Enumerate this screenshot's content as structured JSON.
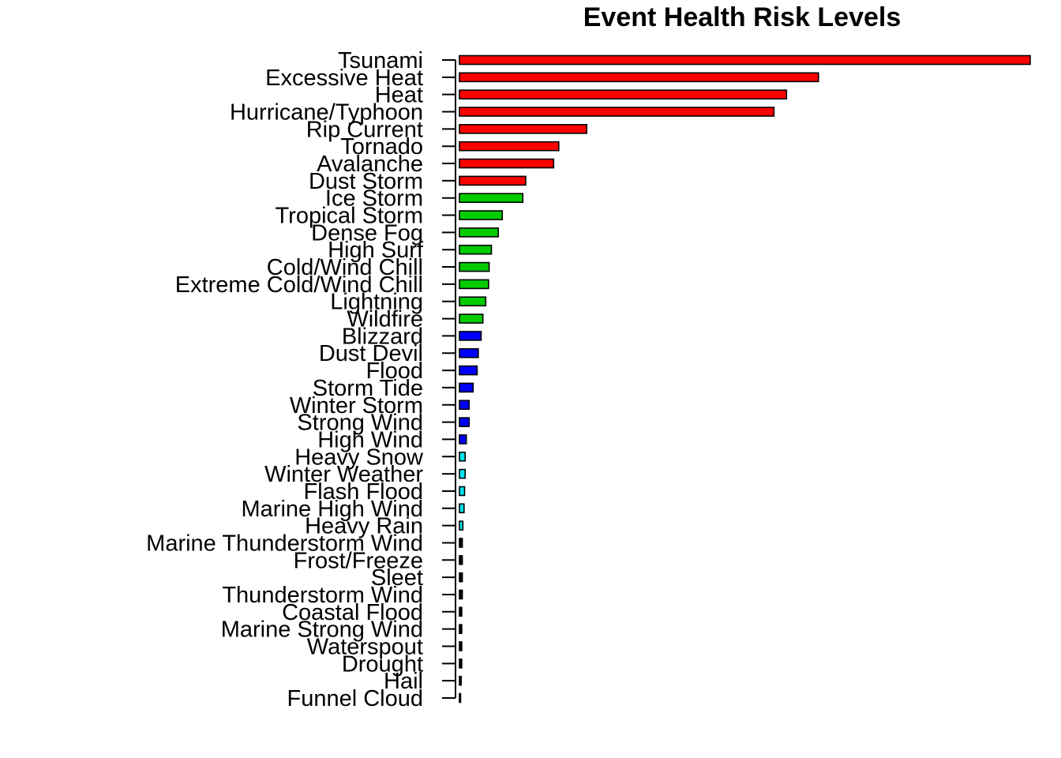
{
  "chart_data": {
    "type": "bar",
    "orientation": "horizontal",
    "title": "Event Health Risk Levels",
    "xlabel": "",
    "ylabel": "",
    "xlim": [
      0,
      100
    ],
    "grid": false,
    "legend": "none",
    "risk_colors": {
      "high": "#ff0000",
      "elevated": "#00cc00",
      "moderate": "#0000ff",
      "low": "#00e5ee",
      "minimal": "#000000"
    },
    "categories": [
      "Tsunami",
      "Excessive Heat",
      "Heat",
      "Hurricane/Typhoon",
      "Rip Current",
      "Tornado",
      "Avalanche",
      "Dust Storm",
      "Ice Storm",
      "Tropical Storm",
      "Dense Fog",
      "High Surf",
      "Cold/Wind Chill",
      "Extreme Cold/Wind Chill",
      "Lightning",
      "Wildfire",
      "Blizzard",
      "Dust Devil",
      "Flood",
      "Storm Tide",
      "Winter Storm",
      "Strong Wind",
      "High Wind",
      "Heavy Snow",
      "Winter Weather",
      "Flash Flood",
      "Marine High Wind",
      "Heavy Rain",
      "Marine Thunderstorm Wind",
      "Frost/Freeze",
      "Sleet",
      "Thunderstorm Wind",
      "Coastal Flood",
      "Marine Strong Wind",
      "Waterspout",
      "Drought",
      "Hail",
      "Funnel Cloud"
    ],
    "values": [
      100,
      62.9,
      57.3,
      55.1,
      22.3,
      17.4,
      16.5,
      11.6,
      11.1,
      7.5,
      6.8,
      5.6,
      5.2,
      5.1,
      4.6,
      4.1,
      3.8,
      3.3,
      3.1,
      2.4,
      1.7,
      1.7,
      1.2,
      1.0,
      1.0,
      0.9,
      0.8,
      0.6,
      0.5,
      0.5,
      0.5,
      0.5,
      0.4,
      0.4,
      0.4,
      0.4,
      0.3,
      0.2
    ],
    "risk_level": [
      "high",
      "high",
      "high",
      "high",
      "high",
      "high",
      "high",
      "high",
      "elevated",
      "elevated",
      "elevated",
      "elevated",
      "elevated",
      "elevated",
      "elevated",
      "elevated",
      "moderate",
      "moderate",
      "moderate",
      "moderate",
      "moderate",
      "moderate",
      "moderate",
      "low",
      "low",
      "low",
      "low",
      "low",
      "minimal",
      "minimal",
      "minimal",
      "minimal",
      "minimal",
      "minimal",
      "minimal",
      "minimal",
      "minimal",
      "minimal"
    ]
  }
}
